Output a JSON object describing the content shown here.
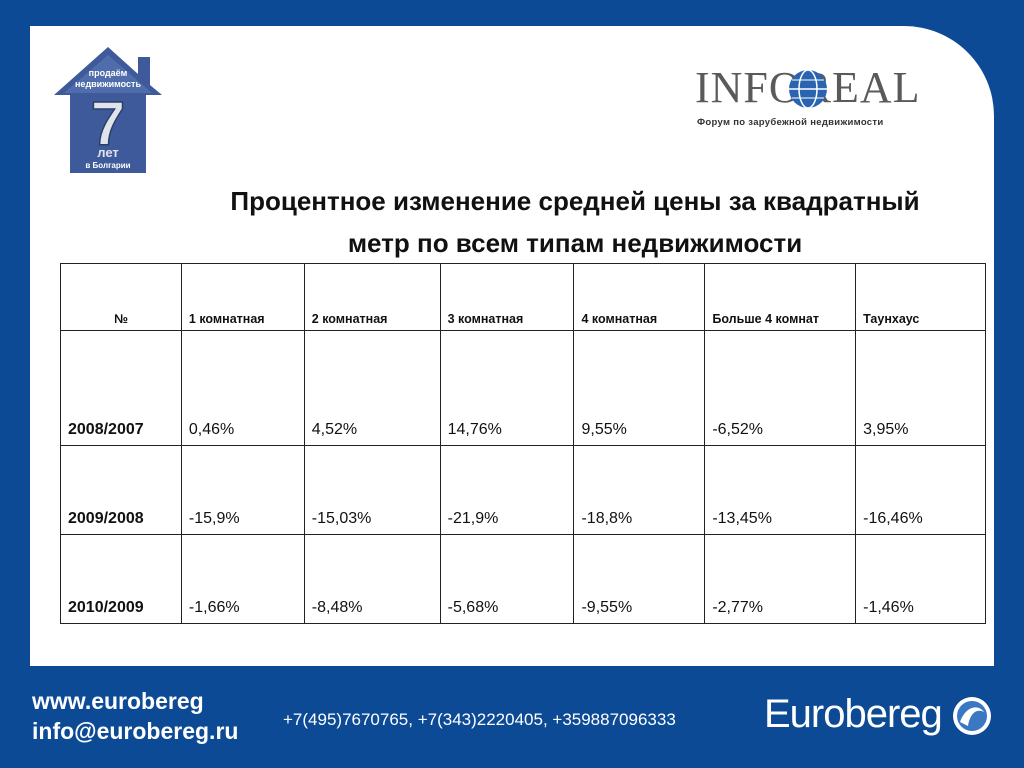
{
  "house_logo": {
    "line1": "продаём",
    "line2": "недвижимость",
    "big": "7",
    "line3": "лет",
    "line4": "в Болгарии"
  },
  "inforeal": {
    "brand": "INFOREAL",
    "tagline": "Форум по зарубежной недвижимости"
  },
  "title": {
    "line1": "Процентное изменение средней цены за квадратный",
    "line2": "метр по всем типам недвижимости"
  },
  "table": {
    "headers": [
      "№",
      "1 комнатная",
      "2 комнатная",
      "3 комнатная",
      "4 комнатная",
      "Больше 4 комнат",
      "Таунхаус"
    ],
    "rows": [
      [
        "2008/2007",
        "0,46%",
        "4,52%",
        "14,76%",
        "9,55%",
        "-6,52%",
        "3,95%"
      ],
      [
        "2009/2008",
        "-15,9%",
        "-15,03%",
        "-21,9%",
        "-18,8%",
        "-13,45%",
        "-16,46%"
      ],
      [
        "2010/2009",
        "-1,66%",
        "-8,48%",
        "-5,68%",
        "-9,55%",
        "-2,77%",
        "-1,46%"
      ]
    ]
  },
  "footer": {
    "website": "www.eurobereg",
    "email": "info@eurobereg.ru",
    "phones": "+7(495)7670765, +7(343)2220405, +359887096333",
    "brand": "Eurobereg"
  },
  "colors": {
    "background": "#0d4a96",
    "panel": "#ffffff",
    "house": "#3e5a9a"
  }
}
